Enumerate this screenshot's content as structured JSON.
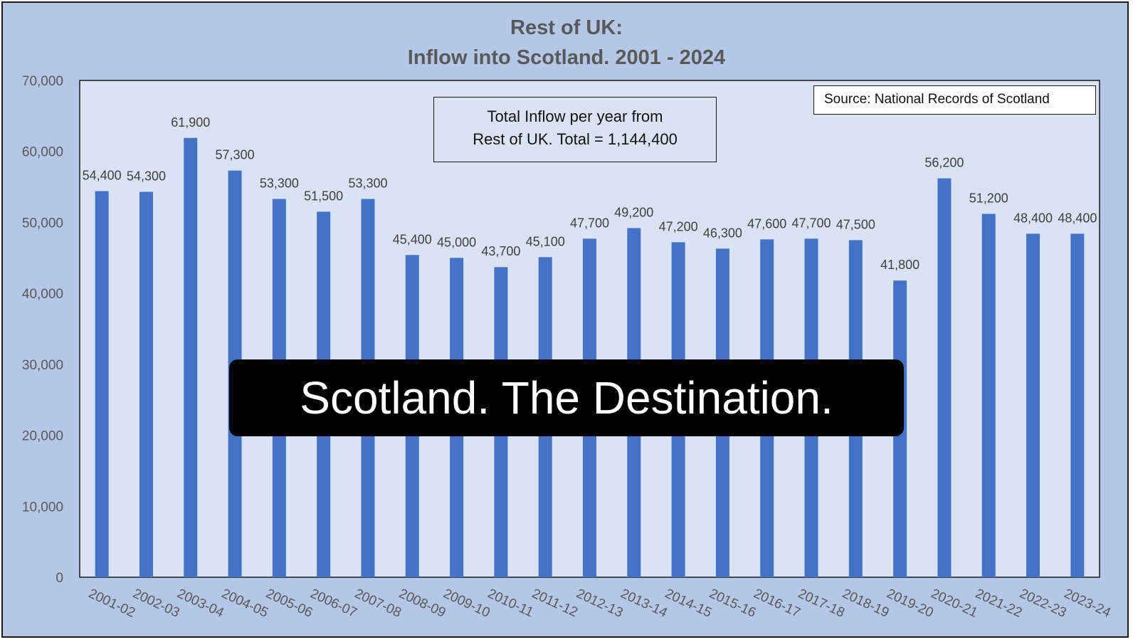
{
  "chart_data": {
    "type": "bar",
    "title_line1": "Rest of UK:",
    "title_line2": "Inflow into Scotland. 2001 - 2024",
    "categories": [
      "2001-02",
      "2002-03",
      "2003-04",
      "2004-05",
      "2005-06",
      "2006-07",
      "2007-08",
      "2008-09",
      "2009-10",
      "2010-11",
      "2011-12",
      "2012-13",
      "2013-14",
      "2014-15",
      "2015-16",
      "2016-17",
      "2017-18",
      "2018-19",
      "2019-20",
      "2020-21",
      "2021-22",
      "2022-23",
      "2023-24"
    ],
    "values": [
      54400,
      54300,
      61900,
      57300,
      53300,
      51500,
      53300,
      45400,
      45000,
      43700,
      45100,
      47700,
      49200,
      47200,
      46300,
      47600,
      47700,
      47500,
      41800,
      56200,
      51200,
      48400,
      48400
    ],
    "data_labels": [
      "54,400",
      "54,300",
      "61,900",
      "57,300",
      "53,300",
      "51,500",
      "53,300",
      "45,400",
      "45,000",
      "43,700",
      "45,100",
      "47,700",
      "49,200",
      "47,200",
      "46,300",
      "47,600",
      "47,700",
      "47,500",
      "41,800",
      "56,200",
      "51,200",
      "48,400",
      "48,400"
    ],
    "ylim": [
      0,
      70000
    ],
    "yticks": [
      "0",
      "10,000",
      "20,000",
      "30,000",
      "40,000",
      "50,000",
      "60,000",
      "70,000"
    ],
    "grid": false,
    "legend": "none",
    "bar_color": "#4472c4",
    "background_color": "#b4c7e7",
    "plot_background_color": "#dae3f3"
  },
  "annotation": {
    "line1": "Total Inflow per year from",
    "line2": "Rest of UK. Total = 1,144,400"
  },
  "source_note": "Source: National Records of Scotland",
  "overlay_caption": "Scotland. The Destination."
}
